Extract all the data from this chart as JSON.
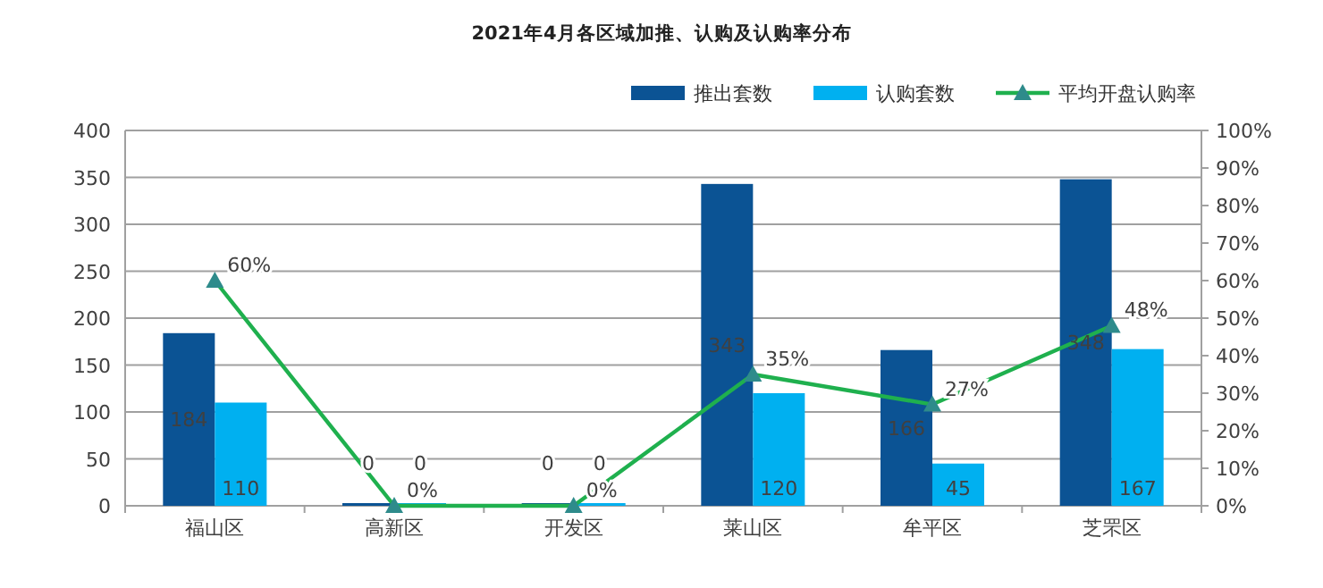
{
  "chart_data": {
    "type": "bar",
    "title": "2021年4月各区域加推、认购及认购率分布",
    "categories": [
      "福山区",
      "高新区",
      "开发区",
      "莱山区",
      "牟平区",
      "芝罘区"
    ],
    "series": [
      {
        "name": "推出套数",
        "color": "#0b5394",
        "values": [
          184,
          0,
          0,
          343,
          166,
          348
        ]
      },
      {
        "name": "认购套数",
        "color": "#00b0f0",
        "values": [
          110,
          0,
          0,
          120,
          45,
          167
        ]
      },
      {
        "name": "平均开盘认购率",
        "color": "#1fb04e",
        "type": "line",
        "axis": "y2",
        "marker": "triangle",
        "value_labels": [
          "60%",
          "0%",
          "0%",
          "35%",
          "27%",
          "48%"
        ],
        "values": [
          60,
          0,
          0,
          35,
          27,
          48
        ]
      }
    ],
    "data_labels": true,
    "ylim": [
      0,
      400
    ],
    "yticks": [
      0,
      50,
      100,
      150,
      200,
      250,
      300,
      350,
      400
    ],
    "y2lim": [
      0,
      100
    ],
    "y2ticks": [
      {
        "value": 0,
        "label": "0%"
      },
      {
        "value": 10,
        "label": "10%"
      },
      {
        "value": 20,
        "label": "20%"
      },
      {
        "value": 30,
        "label": "30%"
      },
      {
        "value": 40,
        "label": "40%"
      },
      {
        "value": 50,
        "label": "50%"
      },
      {
        "value": 60,
        "label": "60%"
      },
      {
        "value": 70,
        "label": "70%"
      },
      {
        "value": 80,
        "label": "80%"
      },
      {
        "value": 90,
        "label": "90%"
      },
      {
        "value": 100,
        "label": "100%"
      }
    ],
    "grid": "y",
    "legend": "top right"
  }
}
